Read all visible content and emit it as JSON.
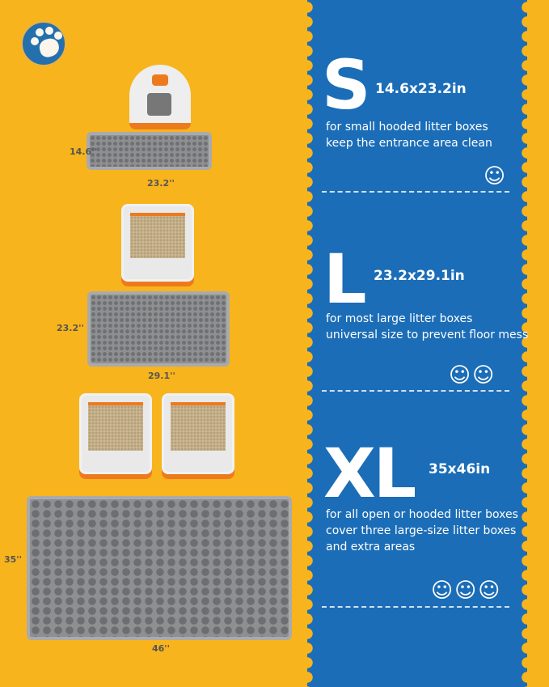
{
  "colors": {
    "background": "#F8B41C",
    "panel": "#1B6DB7",
    "accent": "#EE7A1E"
  },
  "logo_icon": "paw-icon",
  "small": {
    "letter": "S",
    "size": "14.6x23.2in",
    "desc": [
      "for small hooded litter boxes",
      "keep the entrance area clean"
    ],
    "width_label": "14.6''",
    "length_label": "23.2''",
    "cat_count": 1
  },
  "large": {
    "letter": "L",
    "size": "23.2x29.1in",
    "desc": [
      "for most large litter boxes",
      "universal size to prevent floor mess"
    ],
    "width_label": "23.2''",
    "length_label": "29.1''",
    "cat_count": 2
  },
  "xl": {
    "letter": "XL",
    "size": "35x46in",
    "desc": [
      "for all open or hooded litter boxes",
      "cover three large-size litter boxes",
      "and extra areas"
    ],
    "width_label": "35''",
    "length_label": "46''",
    "cat_count": 3
  }
}
